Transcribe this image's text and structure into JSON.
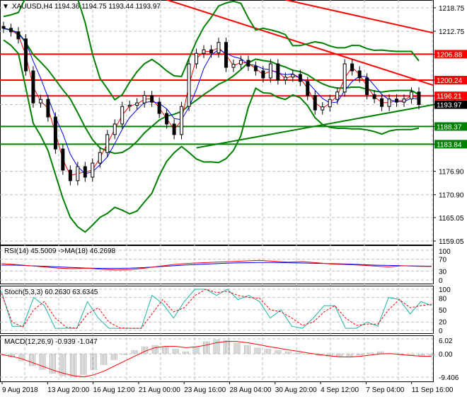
{
  "chart_data": {
    "type": "candlestick",
    "header": {
      "symbol": "XAUUSD,H4",
      "open": "1194.36",
      "high": "1194.75",
      "low": "1193.44",
      "close": "1193.97"
    },
    "price_axis": {
      "ylim": [
        1159.05,
        1218.75
      ],
      "ticks": [
        "1218.75",
        "1212.75",
        "1206.88",
        "1200.24",
        "1196.21",
        "1193.97",
        "1188.37",
        "1183.84",
        "1176.90",
        "1170.90",
        "1165.05",
        "1159.05"
      ]
    },
    "time_axis": {
      "ticks": [
        "9 Aug 2018",
        "13 Aug 20:00",
        "16 Aug 12:00",
        "21 Aug 00:00",
        "23 Aug 16:00",
        "28 Aug 04:00",
        "30 Aug 20:00",
        "4 Sep 12:00",
        "7 Sep 04:00",
        "11 Sep 16:00"
      ]
    },
    "closes": [
      1213.5,
      1212.6,
      1210.8,
      1202.6,
      1194.4,
      1195.3,
      1190.8,
      1182.6,
      1177.2,
      1174.5,
      1178.1,
      1175.4,
      1179.0,
      1181.7,
      1186.3,
      1189.0,
      1193.5,
      1193.8,
      1194.4,
      1196.3,
      1194.6,
      1191.7,
      1189.0,
      1186.3,
      1193.5,
      1204.4,
      1207.1,
      1208.0,
      1207.2,
      1209.9,
      1203.5,
      1204.3,
      1205.3,
      1203.8,
      1202.6,
      1200.8,
      1204.4,
      1200.3,
      1201.0,
      1201.7,
      1199.9,
      1196.3,
      1192.6,
      1193.4,
      1195.3,
      1197.2,
      1204.4,
      1202.6,
      1200.8,
      1196.5,
      1195.5,
      1193.5,
      1195.4,
      1194.6,
      1195.4,
      1197.2,
      1193.97
    ],
    "levels": [
      {
        "label": "1206.88",
        "price": 1206.88,
        "color": "#ff0000"
      },
      {
        "label": "1200.24",
        "price": 1200.24,
        "color": "#ff0000"
      },
      {
        "label": "1196.21",
        "price": 1196.21,
        "color": "#ff0000"
      },
      {
        "label": "1188.37",
        "price": 1188.37,
        "color": "#008000"
      },
      {
        "label": "1183.84",
        "price": 1183.84,
        "color": "#008000"
      }
    ],
    "current_price": {
      "label": "1193.97",
      "price": 1193.97
    },
    "trendlines": [
      {
        "color": "#ff0000",
        "from": [
          22,
          1220.8
        ],
        "to": [
          58,
          1198.9
        ]
      },
      {
        "color": "#ff0000",
        "from": [
          38,
          1220.8
        ],
        "to": [
          58,
          1212.3
        ]
      },
      {
        "color": "#008000",
        "from": [
          26,
          1182.9
        ],
        "to": [
          61,
          1195.0
        ]
      }
    ],
    "rsi": {
      "label": "RSI(14) 45.5009  ->MA(18) 46.2698",
      "ticks": [
        "100",
        "70",
        "30",
        "0"
      ],
      "values": [
        55,
        52,
        48,
        44,
        40,
        38,
        40,
        36,
        34,
        35,
        40,
        46,
        52,
        56,
        58,
        60,
        62,
        64,
        66,
        63,
        60,
        62,
        58,
        54,
        52,
        50,
        47,
        44,
        48,
        46,
        45.5
      ],
      "ma": [
        50,
        50,
        48,
        46,
        44,
        42,
        40,
        39,
        39,
        40,
        42,
        45,
        48,
        51,
        53,
        55,
        57,
        58,
        59,
        59,
        58,
        57,
        56,
        55,
        54,
        52,
        50,
        49,
        48,
        47,
        46.3
      ]
    },
    "stoch": {
      "label": "Stoch(5,3,3) 60.2630 63.6345",
      "ticks": [
        "100",
        "80",
        "50",
        "20",
        "0"
      ],
      "main": [
        95,
        10,
        10,
        80,
        60,
        5,
        5,
        5,
        70,
        30,
        5,
        5,
        5,
        5,
        85,
        65,
        30,
        70,
        100,
        100,
        85,
        100,
        75,
        85,
        70,
        30,
        50,
        10,
        5,
        30,
        60,
        60,
        5,
        5,
        20,
        10,
        80,
        75,
        40,
        70,
        60.3
      ],
      "signal": [
        90,
        20,
        8,
        50,
        70,
        30,
        8,
        5,
        40,
        55,
        20,
        6,
        5,
        5,
        40,
        75,
        45,
        55,
        85,
        100,
        92,
        95,
        85,
        80,
        78,
        50,
        45,
        30,
        12,
        20,
        45,
        60,
        30,
        12,
        15,
        15,
        50,
        75,
        55,
        60,
        63.6
      ]
    },
    "macd": {
      "label": "MACD(12,26,9) -0.939 -1.047",
      "ticks": [
        "6.02",
        "0.00",
        "-9.406"
      ],
      "hist": [
        -0.5,
        -1.5,
        -3,
        -5,
        -6.5,
        -8,
        -9,
        -9.4,
        -8.5,
        -6.5,
        -4.5,
        -2.5,
        -0.5,
        1.5,
        3,
        3.5,
        3,
        2,
        1,
        3,
        5,
        5.8,
        5.5,
        4.5,
        3.5,
        2.5,
        2,
        1.5,
        1,
        0.5,
        -0.3,
        -0.8,
        -1.2,
        -1.5,
        -1.2,
        -0.6,
        0.5,
        1,
        0.2,
        -0.5,
        -0.8,
        -1.0,
        -0.9
      ],
      "signal": [
        -0.3,
        -1,
        -2,
        -3.5,
        -5,
        -6.5,
        -7.8,
        -8.8,
        -9.3,
        -8.5,
        -7,
        -5,
        -3,
        -1,
        1,
        2.5,
        3,
        3,
        2.5,
        2.8,
        3.5,
        4.5,
        5,
        5,
        4.5,
        3.8,
        3,
        2.3,
        1.6,
        1,
        0.3,
        -0.3,
        -0.8,
        -1.2,
        -1.3,
        -1,
        -0.5,
        0,
        0.1,
        -0.3,
        -0.7,
        -0.95,
        -1.05
      ]
    }
  }
}
